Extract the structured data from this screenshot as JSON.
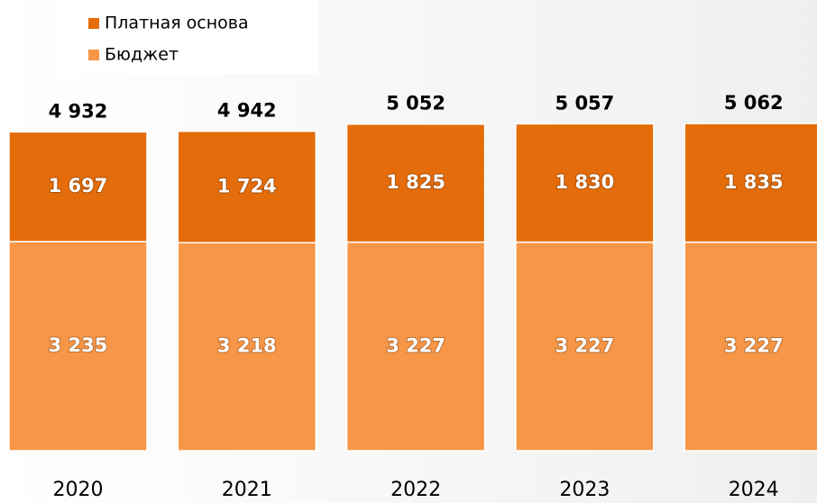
{
  "chart_data": {
    "type": "stacked_bar",
    "categories": [
      "2020",
      "2021",
      "2022",
      "2023",
      "2024"
    ],
    "series": [
      {
        "name": "Бюджет",
        "color": "#f79646",
        "values": [
          3235,
          3218,
          3227,
          3227,
          3227
        ],
        "value_labels": [
          "3 235",
          "3 218",
          "3 227",
          "3 227",
          "3 227"
        ]
      },
      {
        "name": "Платная основа",
        "color": "#e46c0a",
        "values": [
          1697,
          1724,
          1825,
          1830,
          1835
        ],
        "value_labels": [
          "1 697",
          "1 724",
          "1 825",
          "1 830",
          "1 835"
        ]
      }
    ],
    "totals": {
      "values": [
        4932,
        4942,
        5052,
        5057,
        5062
      ],
      "value_labels": [
        "4 932",
        "4 942",
        "5 052",
        "5 057",
        "5 062"
      ]
    },
    "legend": "top-left"
  }
}
